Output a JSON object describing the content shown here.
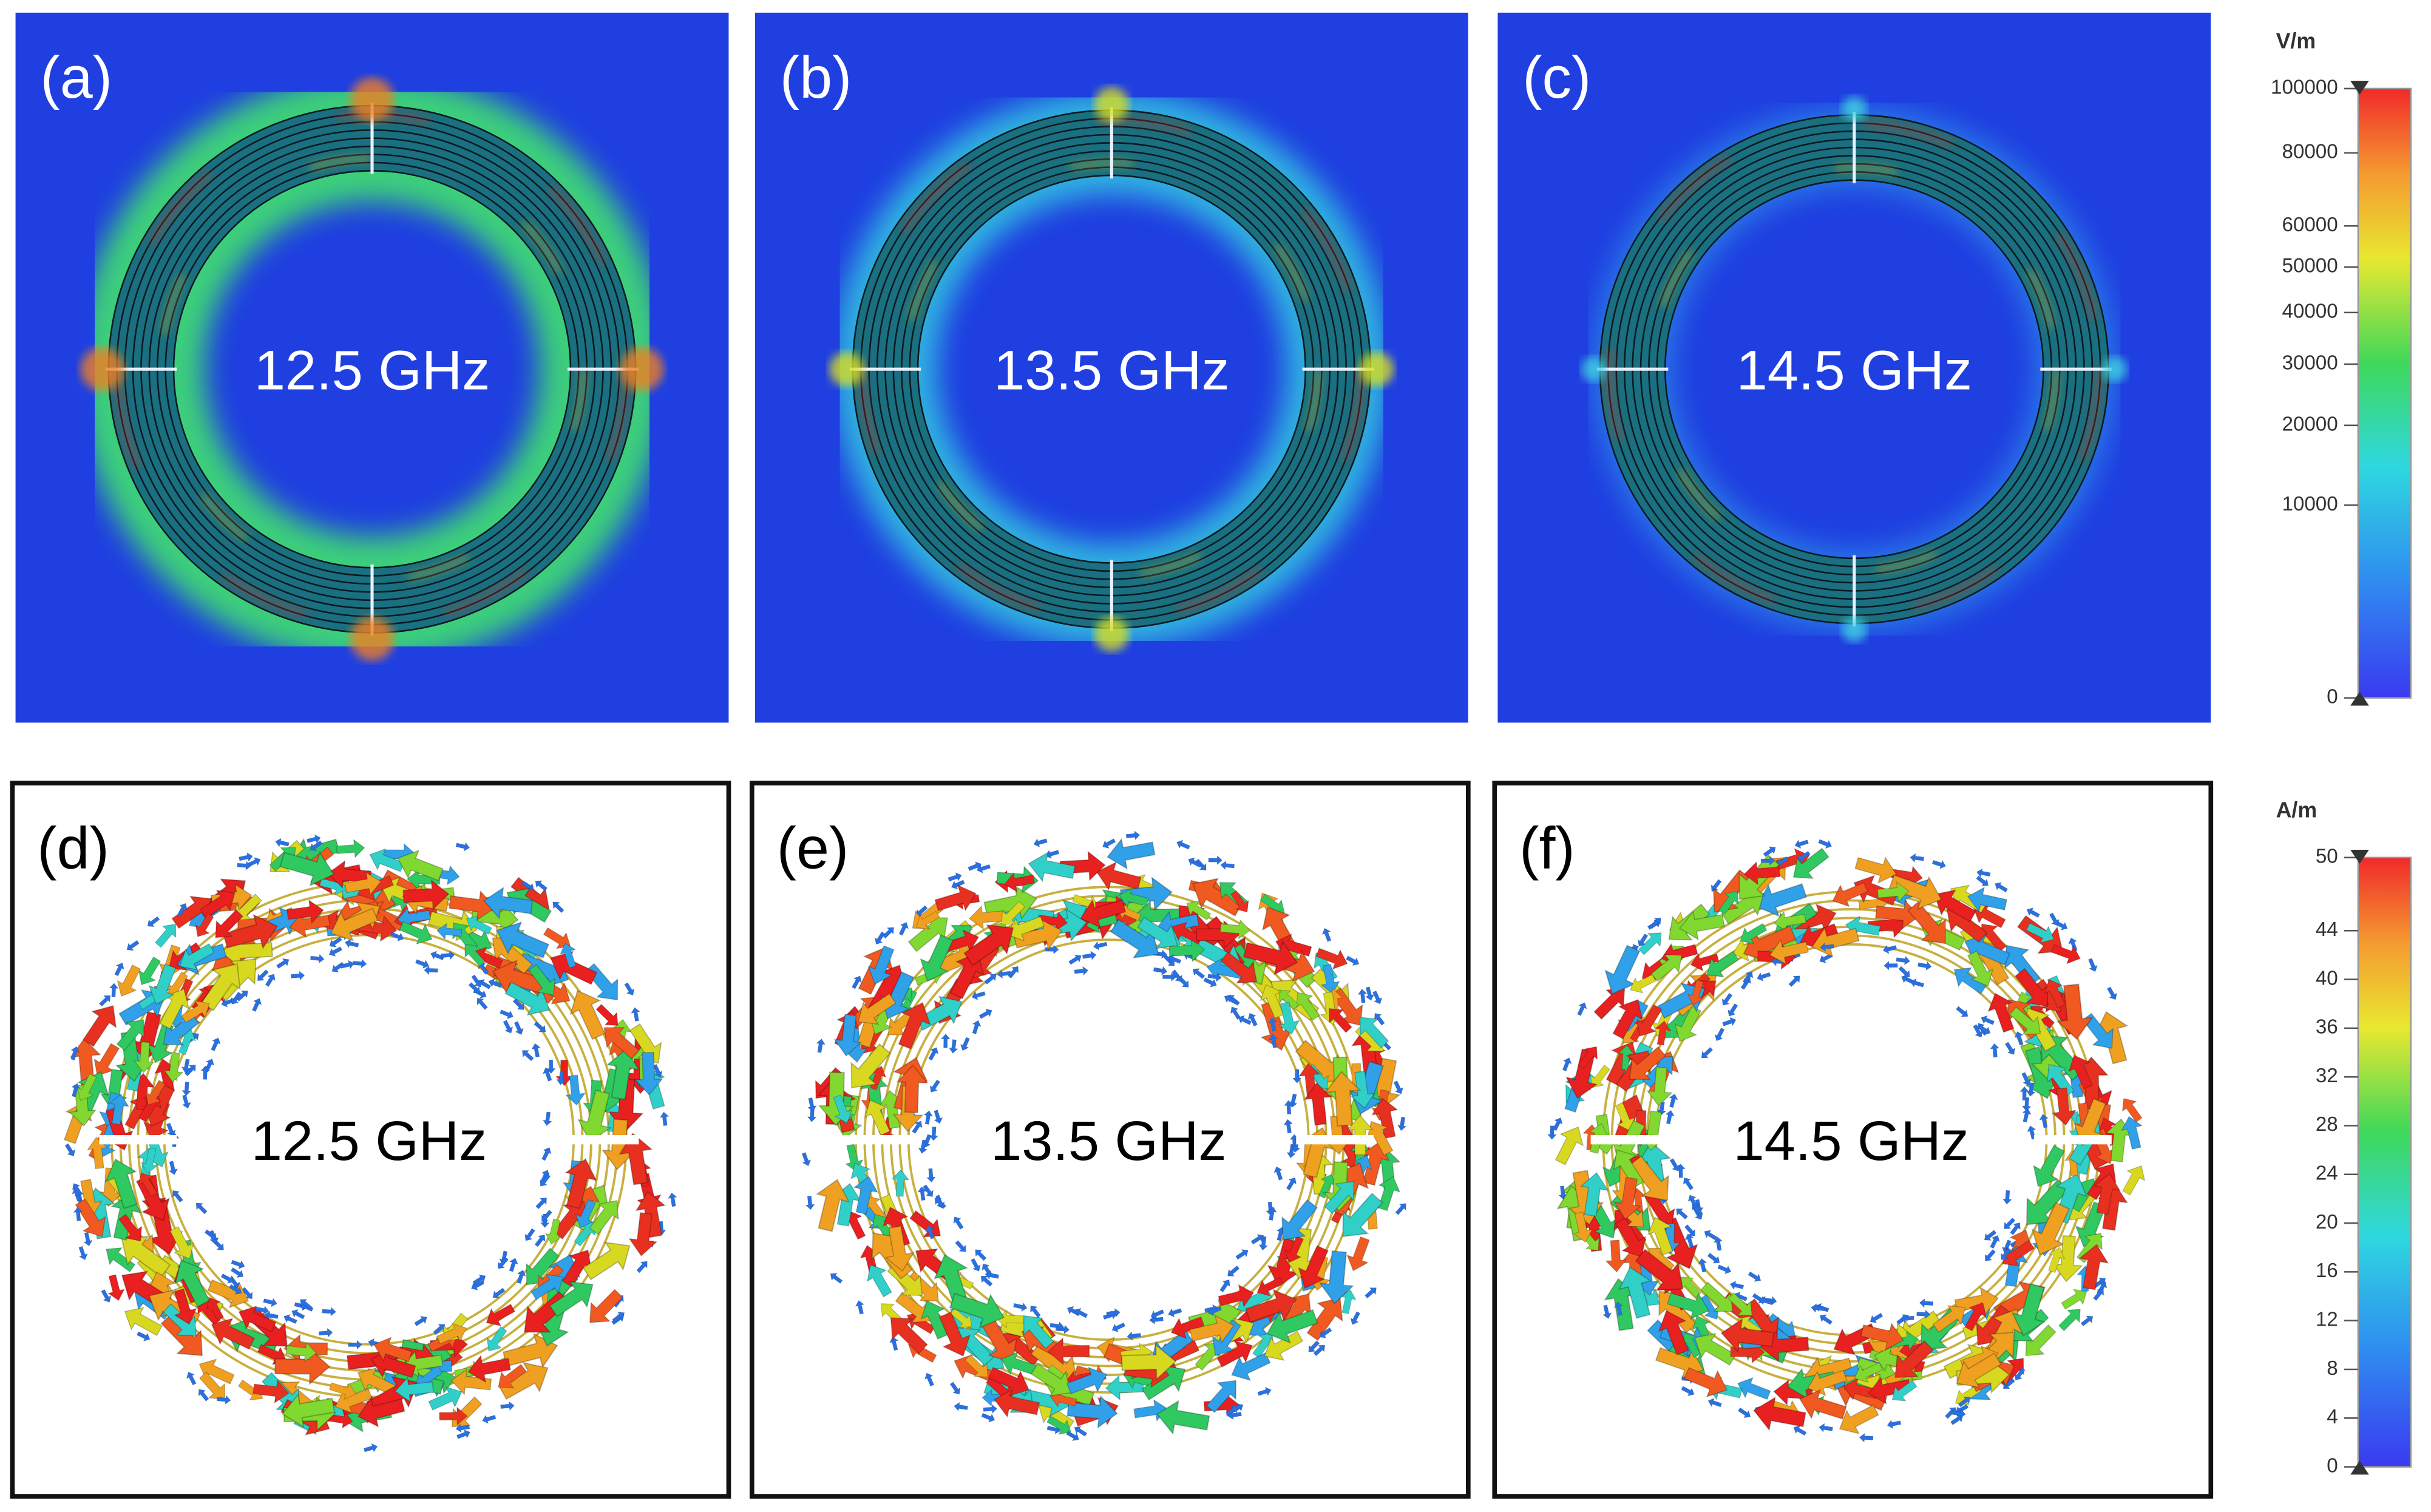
{
  "panels": [
    {
      "label": "(a)",
      "frequency": "12.5 GHz"
    },
    {
      "label": "(b)",
      "frequency": "13.5 GHz"
    },
    {
      "label": "(c)",
      "frequency": "14.5 GHz"
    },
    {
      "label": "(d)",
      "frequency": "12.5 GHz"
    },
    {
      "label": "(e)",
      "frequency": "13.5 GHz"
    },
    {
      "label": "(f)",
      "frequency": "14.5 GHz"
    }
  ],
  "colorbars": [
    {
      "unit": "V/m",
      "lim": [
        0,
        100000
      ],
      "scale": "sqrt",
      "ticks": [
        0,
        10000,
        20000,
        30000,
        40000,
        50000,
        60000,
        80000,
        100000
      ]
    },
    {
      "unit": "A/m",
      "lim": [
        0,
        50
      ],
      "scale": "linear",
      "ticks": [
        0,
        4,
        8,
        12,
        16,
        20,
        24,
        28,
        32,
        36,
        40,
        44,
        50
      ]
    }
  ]
}
